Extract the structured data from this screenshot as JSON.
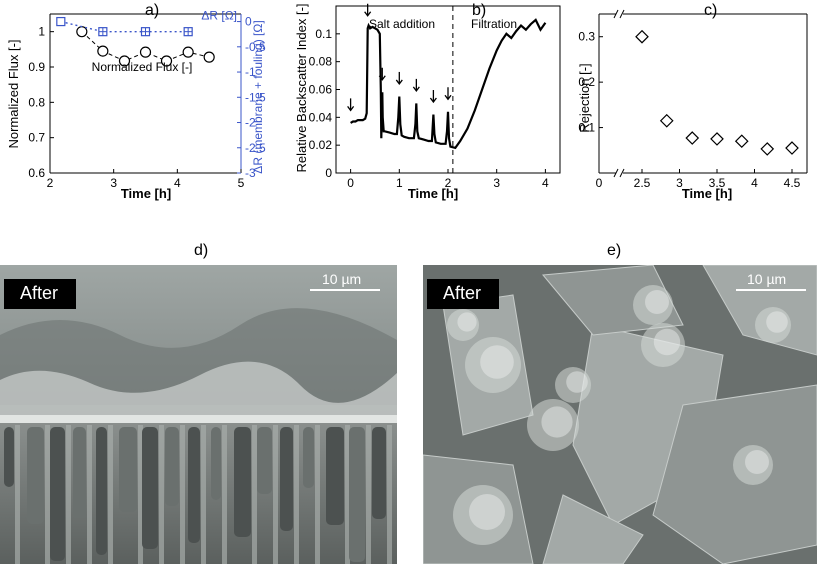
{
  "chart_data": [
    {
      "id": "a",
      "type": "scatter",
      "panel_label": "a)",
      "xlabel": "Time [h]",
      "ylabel_left": "Normalized Flux [-]",
      "ylabel_right": "ΔR (membrane + fouling) [Ω]",
      "xlim": [
        2,
        5
      ],
      "xticks": [
        "2",
        "3",
        "4",
        "5"
      ],
      "ylim_left": [
        0.6,
        1.05
      ],
      "yticks_left": [
        "0.6",
        "0.7",
        "0.8",
        "0.9",
        "1"
      ],
      "ylim_right": [
        -3,
        0.15
      ],
      "yticks_right": [
        "0",
        "-0.5",
        "-1",
        "-1.5",
        "-2",
        "-2.5",
        "-3"
      ],
      "series": [
        {
          "name": "Normalized Flux [-]",
          "axis": "left",
          "marker": "circle",
          "color": "#000000",
          "x": [
            2.5,
            2.83,
            3.17,
            3.5,
            3.83,
            4.17,
            4.5
          ],
          "y": [
            1.0,
            0.945,
            0.917,
            0.942,
            0.917,
            0.942,
            0.928
          ]
        },
        {
          "name": "ΔR [Ω]",
          "axis": "right",
          "marker": "square-plus",
          "color": "#3a55c9",
          "x": [
            2.17,
            2.83,
            3.5,
            4.17
          ],
          "y": [
            0.0,
            -0.2,
            -0.2,
            -0.2
          ]
        }
      ]
    },
    {
      "id": "b",
      "type": "line",
      "panel_label": "b)",
      "xlabel": "Time [h]",
      "ylabel": "Relative Backscatter Index [-]",
      "xlim": [
        -0.3,
        4.3
      ],
      "xticks": [
        0,
        1,
        2,
        3,
        4
      ],
      "ylim": [
        0,
        0.12
      ],
      "yticks": [
        "0",
        "0.02",
        "0.04",
        "0.06",
        "0.08",
        "0.1"
      ],
      "annotations": [
        "Salt addition",
        "Filtration"
      ],
      "divider_x": 2.1,
      "arrow_times": [
        0.0,
        0.35,
        0.65,
        1.0,
        1.35,
        1.7,
        2.0
      ],
      "series": [
        {
          "name": "",
          "color": "#000000",
          "x": [
            0.0,
            0.05,
            0.1,
            0.15,
            0.2,
            0.25,
            0.3,
            0.33,
            0.35,
            0.37,
            0.4,
            0.45,
            0.5,
            0.55,
            0.6,
            0.62,
            0.63,
            0.64,
            0.65,
            0.66,
            0.68,
            0.7,
            0.8,
            0.9,
            0.95,
            0.98,
            1.0,
            1.02,
            1.05,
            1.1,
            1.2,
            1.3,
            1.33,
            1.35,
            1.37,
            1.4,
            1.5,
            1.6,
            1.67,
            1.7,
            1.72,
            1.75,
            1.85,
            1.95,
            1.98,
            2.0,
            2.02,
            2.05,
            2.15,
            2.25,
            2.4,
            2.55,
            2.7,
            2.85,
            3.0,
            3.1,
            3.2,
            3.3,
            3.4,
            3.5,
            3.6,
            3.7,
            3.8,
            3.9,
            4.0
          ],
          "y": [
            0.036,
            0.037,
            0.037,
            0.038,
            0.038,
            0.038,
            0.039,
            0.043,
            0.104,
            0.106,
            0.104,
            0.105,
            0.104,
            0.103,
            0.1,
            0.06,
            0.025,
            0.045,
            0.058,
            0.04,
            0.03,
            0.03,
            0.029,
            0.028,
            0.028,
            0.04,
            0.055,
            0.035,
            0.027,
            0.026,
            0.025,
            0.025,
            0.035,
            0.05,
            0.03,
            0.025,
            0.024,
            0.023,
            0.023,
            0.042,
            0.028,
            0.022,
            0.021,
            0.021,
            0.03,
            0.044,
            0.025,
            0.019,
            0.018,
            0.023,
            0.032,
            0.045,
            0.06,
            0.075,
            0.088,
            0.095,
            0.1,
            0.097,
            0.102,
            0.106,
            0.103,
            0.107,
            0.11,
            0.103,
            0.108
          ]
        }
      ]
    },
    {
      "id": "c",
      "type": "scatter",
      "panel_label": "c)",
      "xlabel": "Time [h]",
      "ylabel": "Rejection [-]",
      "xlim": [
        1.9,
        4.7
      ],
      "xticks": [
        "0",
        "2.5",
        "3",
        "3.5",
        "4",
        "4.5"
      ],
      "ylim": [
        0,
        0.35
      ],
      "yticks": [
        "0.1",
        "0.2",
        "0.3"
      ],
      "marker": "diamond",
      "series": [
        {
          "name": "",
          "x": [
            2.5,
            2.83,
            3.17,
            3.5,
            3.83,
            4.17,
            4.5
          ],
          "y": [
            0.3,
            0.115,
            0.077,
            0.075,
            0.07,
            0.053,
            0.055
          ]
        }
      ]
    }
  ],
  "micrographs": [
    {
      "panel_label": "d)",
      "tag": "After",
      "scale_label": "10 µm"
    },
    {
      "panel_label": "e)",
      "tag": "After",
      "scale_label": "10 µm"
    }
  ],
  "colors": {
    "axis_blue": "#3a55c9",
    "black": "#000000"
  }
}
